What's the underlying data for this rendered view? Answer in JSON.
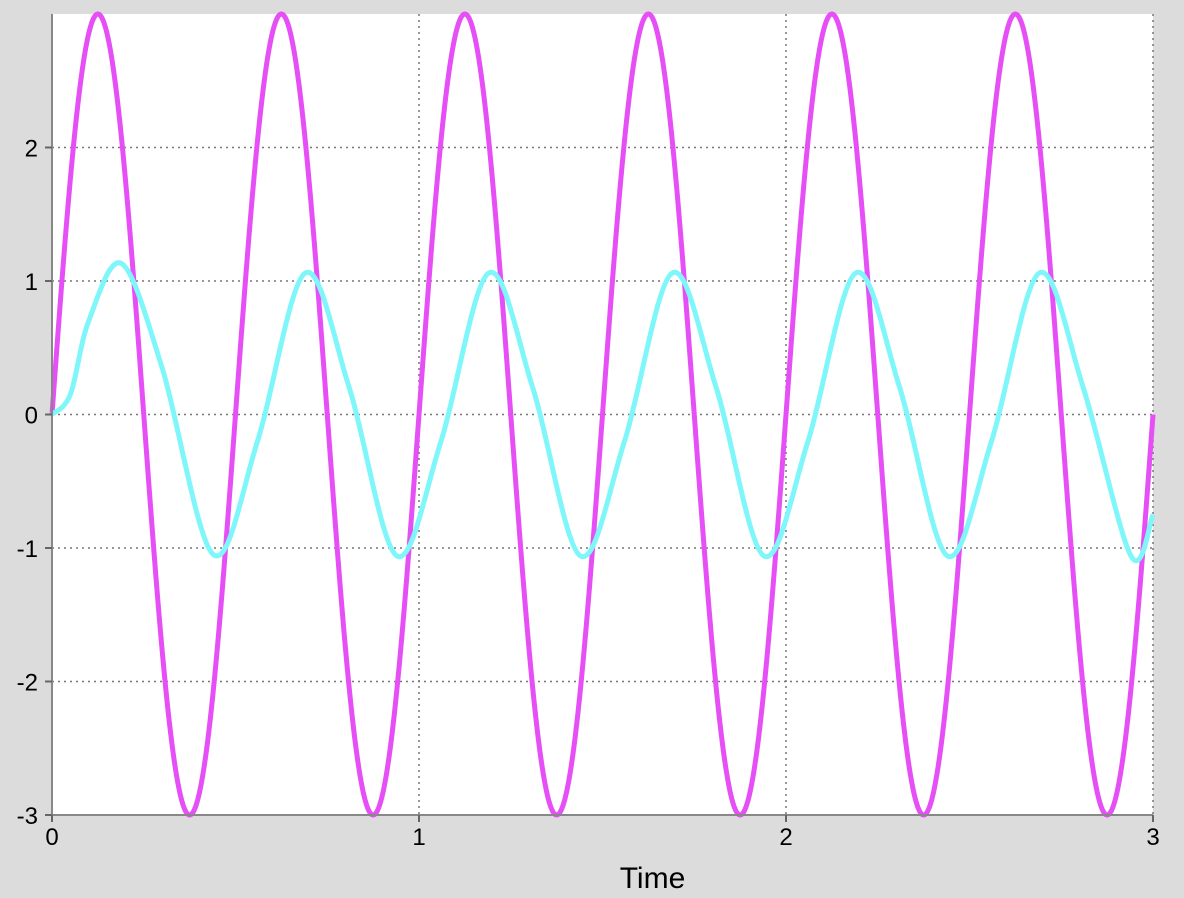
{
  "chart_data": {
    "type": "line",
    "title": "",
    "xlabel": "Time",
    "ylabel": "",
    "xlim": [
      0,
      3
    ],
    "ylim": [
      -3,
      3
    ],
    "x_ticks": [
      0,
      1,
      2,
      3
    ],
    "x_tick_labels": [
      "0",
      "1",
      "2",
      "3"
    ],
    "y_ticks": [
      -3,
      -2,
      -1,
      0,
      1,
      2
    ],
    "y_tick_labels": [
      "-3",
      "-2",
      "-1",
      "0",
      "1",
      "2"
    ],
    "grid": true,
    "legend": "none",
    "background": "#dcdcdc",
    "plot_background": "#ffffff",
    "series": [
      {
        "color": "#e54ff5",
        "description": "sine wave, amplitude 3, period 0.5",
        "amplitude": 3,
        "frequency_hz": 2,
        "x": [
          0,
          0.125,
          0.25,
          0.375,
          0.5,
          0.625,
          0.75,
          0.875,
          1,
          1.125,
          1.25,
          1.375,
          1.5,
          1.625,
          1.75,
          1.875,
          2,
          2.125,
          2.25,
          2.375,
          2.5,
          2.625,
          2.75,
          2.875,
          3
        ],
        "values": [
          0,
          3,
          0,
          -3,
          0,
          3,
          0,
          -3,
          0,
          3,
          0,
          -3,
          0,
          3,
          0,
          -3,
          0,
          3,
          0,
          -3,
          0,
          3,
          0,
          -3,
          0
        ]
      },
      {
        "color": "#7ff7fa",
        "description": "second-order response to sine input, steady-state amplitude ~1.06, lagging",
        "steady_amplitude": 1.06,
        "x": [
          0,
          0.05,
          0.1,
          0.19,
          0.3,
          0.44,
          0.56,
          0.69,
          0.81,
          0.94,
          1.06,
          1.19,
          1.31,
          1.44,
          1.56,
          1.69,
          1.81,
          1.94,
          2.06,
          2.19,
          2.31,
          2.44,
          2.56,
          2.69,
          2.81,
          2.94,
          3
        ],
        "values": [
          0,
          0.15,
          0.7,
          1.13,
          0.35,
          -1.05,
          -0.2,
          1.06,
          0.2,
          -1.06,
          -0.2,
          1.06,
          0.2,
          -1.06,
          -0.2,
          1.06,
          0.2,
          -1.06,
          -0.2,
          1.06,
          0.2,
          -1.06,
          -0.2,
          1.06,
          0.2,
          -1.06,
          -0.75
        ]
      }
    ]
  }
}
